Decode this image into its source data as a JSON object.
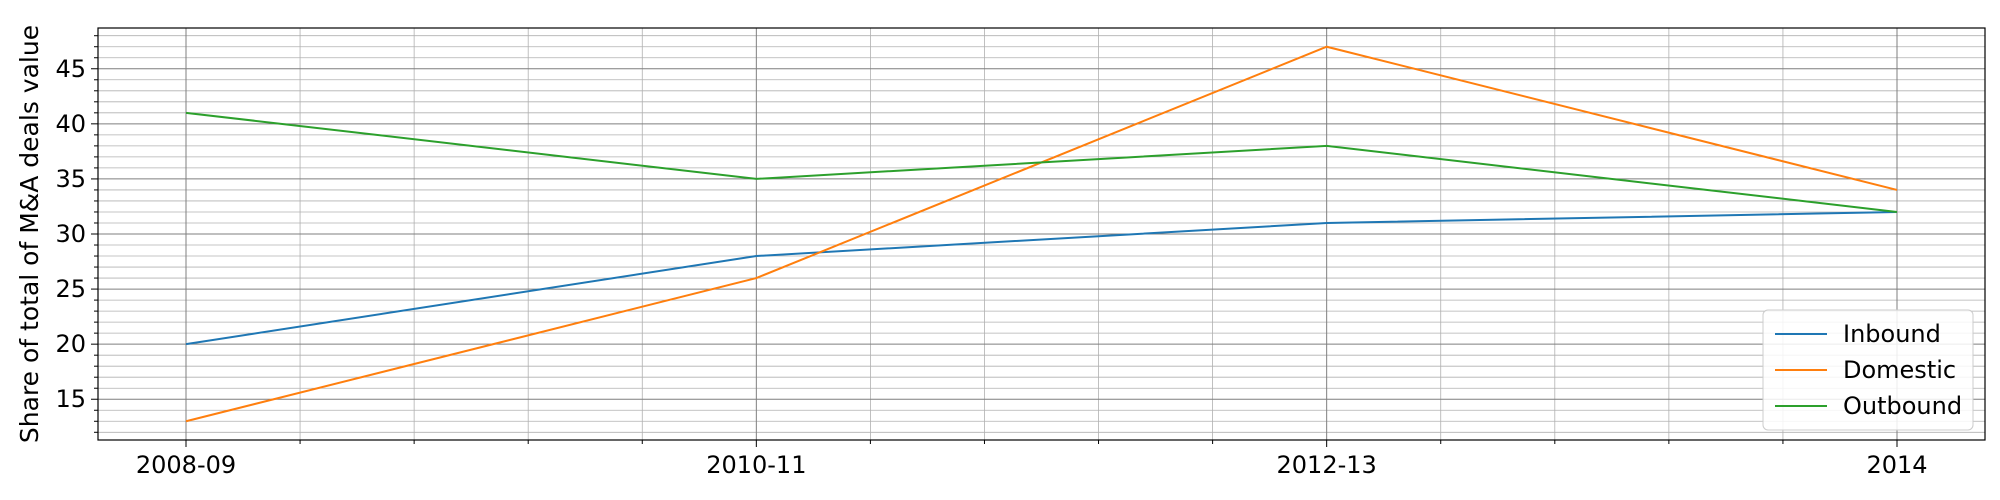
{
  "chart_data": {
    "type": "line",
    "categories": [
      "2008-09",
      "2010-11",
      "2012-13",
      "2014"
    ],
    "series": [
      {
        "name": "Inbound",
        "values": [
          20,
          28,
          31,
          32
        ],
        "color": "#1f77b4"
      },
      {
        "name": "Domestic",
        "values": [
          13,
          26,
          47,
          34
        ],
        "color": "#ff7f0e"
      },
      {
        "name": "Outbound",
        "values": [
          41,
          35,
          38,
          32
        ],
        "color": "#2ca02c"
      }
    ],
    "title": "",
    "xlabel": "",
    "ylabel": "Share of total of M&A deals value",
    "ylim": [
      11.3,
      48.7
    ],
    "yticks": [
      15,
      20,
      25,
      30,
      35,
      40,
      45
    ],
    "grid": true,
    "legend_position": "lower-right"
  }
}
